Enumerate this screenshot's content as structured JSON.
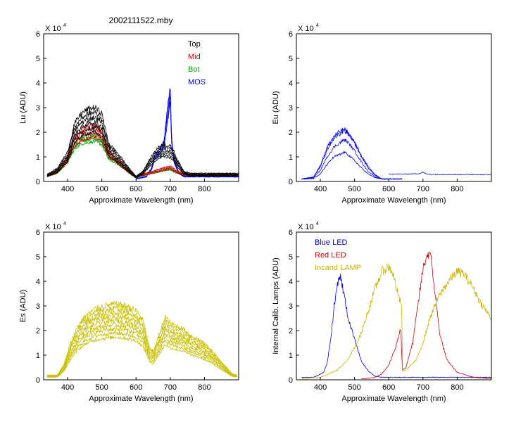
{
  "figure_title": "2002111522.mby",
  "colors": {
    "top": "#000000",
    "mid": "#cc0000",
    "bot": "#00aa00",
    "mos": "#0000ee",
    "es": "#c8c000",
    "blue_led": "#0000cc",
    "red_led": "#cc0000",
    "incand": "#c8b400",
    "axis": "#000000"
  },
  "chart_data": [
    {
      "id": "lu",
      "type": "line",
      "title": "",
      "xlabel": "Approximate Wavelength (nm)",
      "ylabel": "Lu (ADU)",
      "exponent_label": "X 10",
      "exponent_power": "4",
      "xlim": [
        330,
        900
      ],
      "ylim": [
        0,
        6
      ],
      "xticks": [
        400,
        500,
        600,
        700,
        800
      ],
      "yticks": [
        0,
        1,
        2,
        3,
        4,
        5,
        6
      ],
      "legend": [
        {
          "label": "Top",
          "color": "#000000"
        },
        {
          "label": "Mid",
          "color": "#cc0000"
        },
        {
          "label": "Bot",
          "color": "#00aa00"
        },
        {
          "label": "MOS",
          "color": "#0000ee"
        }
      ],
      "series": [
        {
          "name": "MOS",
          "color": "#0000ee",
          "copies": 4,
          "spread": 0.06,
          "x": [
            600,
            630,
            645,
            655,
            665,
            675,
            682,
            690,
            695,
            700,
            703,
            706,
            712,
            725,
            740,
            760,
            900
          ],
          "y": [
            0.1,
            0.2,
            0.5,
            1.0,
            1.1,
            1.35,
            1.5,
            2.5,
            3.0,
            3.75,
            2.0,
            1.3,
            0.8,
            0.35,
            0.2,
            0.2,
            0.2
          ]
        },
        {
          "name": "Bot",
          "color": "#00aa00",
          "copies": 3,
          "spread": 0.07,
          "x": [
            340,
            370,
            400,
            420,
            440,
            460,
            480,
            500,
            520,
            540,
            560,
            580,
            600,
            620,
            650,
            680,
            700,
            720,
            740,
            760,
            900
          ],
          "y": [
            0.2,
            0.35,
            0.8,
            1.4,
            1.65,
            1.7,
            1.75,
            1.6,
            0.95,
            0.8,
            0.6,
            0.35,
            0.15,
            0.25,
            0.35,
            0.45,
            0.5,
            0.35,
            0.28,
            0.25,
            0.25
          ]
        },
        {
          "name": "Mid",
          "color": "#cc0000",
          "copies": 4,
          "spread": 0.08,
          "x": [
            340,
            370,
            400,
            420,
            440,
            460,
            480,
            500,
            520,
            540,
            560,
            580,
            600,
            620,
            650,
            680,
            700,
            720,
            740,
            760,
            900
          ],
          "y": [
            0.22,
            0.4,
            0.9,
            1.6,
            1.9,
            2.0,
            2.05,
            1.85,
            1.1,
            0.9,
            0.65,
            0.4,
            0.17,
            0.27,
            0.38,
            0.5,
            0.57,
            0.38,
            0.29,
            0.26,
            0.26
          ]
        },
        {
          "name": "Top",
          "color": "#000000",
          "copies": 6,
          "spread": 0.08,
          "x": [
            340,
            370,
            400,
            420,
            440,
            460,
            480,
            500,
            520,
            540,
            560,
            580,
            600,
            620,
            640,
            660,
            680,
            690,
            700,
            710,
            720,
            740,
            760,
            900
          ],
          "y": [
            0.25,
            0.45,
            1.0,
            1.95,
            2.3,
            2.45,
            2.5,
            2.3,
            1.3,
            1.05,
            0.75,
            0.45,
            0.18,
            0.35,
            0.75,
            1.1,
            1.3,
            1.2,
            1.2,
            1.05,
            0.75,
            0.35,
            0.28,
            0.28
          ]
        }
      ]
    },
    {
      "id": "eu",
      "type": "line",
      "title": "",
      "xlabel": "Approximate Wavelength (nm)",
      "ylabel": "Eu (ADU)",
      "exponent_label": "X 10",
      "exponent_power": "4",
      "xlim": [
        330,
        900
      ],
      "ylim": [
        0,
        6
      ],
      "xticks": [
        400,
        500,
        600,
        700,
        800
      ],
      "yticks": [
        0,
        1,
        2,
        3,
        4,
        5,
        6
      ],
      "legend": [],
      "series": [
        {
          "name": "Eu1",
          "color": "#0000ee",
          "copies": 1,
          "spread": 0.03,
          "x": [
            345,
            380,
            400,
            420,
            440,
            460,
            470,
            480,
            500,
            520,
            540,
            560,
            580,
            600,
            640
          ],
          "y": [
            0.1,
            0.12,
            0.3,
            0.7,
            1.0,
            1.1,
            1.2,
            1.1,
            0.85,
            0.55,
            0.3,
            0.15,
            0.1,
            0.1,
            0.1
          ]
        },
        {
          "name": "Eu2",
          "color": "#0000ee",
          "copies": 1,
          "spread": 0.04,
          "x": [
            345,
            380,
            400,
            420,
            440,
            460,
            470,
            480,
            500,
            520,
            540,
            560,
            580,
            600,
            640
          ],
          "y": [
            0.1,
            0.15,
            0.45,
            1.0,
            1.4,
            1.6,
            1.7,
            1.6,
            1.25,
            0.8,
            0.4,
            0.2,
            0.1,
            0.1,
            0.1
          ]
        },
        {
          "name": "Eu3",
          "color": "#0000ee",
          "copies": 1,
          "spread": 0.04,
          "x": [
            345,
            380,
            400,
            420,
            440,
            460,
            470,
            480,
            500,
            520,
            540,
            560,
            580,
            600,
            640
          ],
          "y": [
            0.1,
            0.18,
            0.6,
            1.3,
            1.75,
            1.95,
            2.05,
            1.95,
            1.55,
            1.0,
            0.55,
            0.25,
            0.1,
            0.1,
            0.1
          ]
        },
        {
          "name": "Eu4",
          "color": "#0000ee",
          "copies": 1,
          "spread": 0.04,
          "x": [
            345,
            380,
            400,
            420,
            440,
            460,
            470,
            480,
            500,
            520,
            540,
            560,
            580,
            600,
            640
          ],
          "y": [
            0.1,
            0.18,
            0.65,
            1.4,
            1.85,
            2.05,
            2.12,
            2.0,
            1.6,
            1.05,
            0.6,
            0.28,
            0.1,
            0.1,
            0.1
          ]
        },
        {
          "name": "Eu-red",
          "color": "#0000ee",
          "copies": 1,
          "spread": 0.01,
          "x": [
            600,
            650,
            690,
            700,
            710,
            740,
            800,
            900
          ],
          "y": [
            0.3,
            0.3,
            0.32,
            0.38,
            0.3,
            0.28,
            0.28,
            0.28
          ]
        }
      ]
    },
    {
      "id": "es",
      "type": "line",
      "title": "",
      "xlabel": "Approximate Wavelength (nm)",
      "ylabel": "Es (ADU)",
      "exponent_label": "X 10",
      "exponent_power": "4",
      "xlim": [
        330,
        900
      ],
      "ylim": [
        0,
        6
      ],
      "xticks": [
        400,
        500,
        600,
        700,
        800
      ],
      "yticks": [
        0,
        1,
        2,
        3,
        4,
        5,
        6
      ],
      "legend": [],
      "series": [
        {
          "name": "Es",
          "color": "#c8c000",
          "copies": 9,
          "spread": 0.07,
          "x": [
            340,
            370,
            390,
            410,
            430,
            450,
            480,
            510,
            540,
            570,
            600,
            620,
            640,
            650,
            670,
            685,
            700,
            720,
            740,
            760,
            780,
            800,
            820,
            840,
            860,
            880,
            895
          ],
          "y": [
            0.15,
            0.15,
            0.5,
            1.2,
            1.7,
            2.0,
            2.25,
            2.35,
            2.4,
            2.35,
            2.2,
            1.9,
            1.0,
            0.9,
            1.5,
            2.0,
            1.8,
            1.7,
            1.6,
            1.4,
            1.3,
            1.15,
            0.95,
            0.7,
            0.45,
            0.2,
            0.15
          ]
        }
      ]
    },
    {
      "id": "lamps",
      "type": "line",
      "title": "",
      "xlabel": "Approximate Wavelength (nm)",
      "ylabel": "Internal Calib. Lamps (ADU)",
      "exponent_label": "X 10",
      "exponent_power": "4",
      "xlim": [
        330,
        900
      ],
      "ylim": [
        0,
        6
      ],
      "xticks": [
        400,
        500,
        600,
        700,
        800
      ],
      "yticks": [
        0,
        1,
        2,
        3,
        4,
        5,
        6
      ],
      "legend": [
        {
          "label": "Blue LED",
          "color": "#0000cc"
        },
        {
          "label": "Red LED",
          "color": "#cc0000"
        },
        {
          "label": "Incand LAMP",
          "color": "#c8b400"
        }
      ],
      "series": [
        {
          "name": "Blue LED",
          "color": "#0000cc",
          "copies": 1,
          "spread": 0.03,
          "x": [
            345,
            380,
            410,
            420,
            430,
            440,
            450,
            455,
            460,
            470,
            480,
            490,
            500,
            510,
            520,
            540,
            560,
            580,
            600,
            640,
            700,
            900
          ],
          "y": [
            0.1,
            0.1,
            0.3,
            0.7,
            1.6,
            2.9,
            3.9,
            4.2,
            4.15,
            3.4,
            2.6,
            2.1,
            1.7,
            1.2,
            0.75,
            0.35,
            0.15,
            0.1,
            0.1,
            0.1,
            0.1,
            0.1
          ]
        },
        {
          "name": "Red LED",
          "color": "#cc0000",
          "copies": 1,
          "spread": 0.03,
          "x": [
            520,
            560,
            580,
            600,
            620,
            635,
            640,
            650,
            670,
            690,
            700,
            710,
            718,
            725,
            735,
            750,
            770,
            800,
            850,
            900
          ],
          "y": [
            0.03,
            0.1,
            0.25,
            0.6,
            1.3,
            2.1,
            0.4,
            0.5,
            1.5,
            3.5,
            4.5,
            5.0,
            5.15,
            4.8,
            3.5,
            1.8,
            0.8,
            0.3,
            0.1,
            0.05
          ]
        },
        {
          "name": "Incand LAMP",
          "color": "#c8b400",
          "copies": 1,
          "spread": 0.04,
          "x": [
            345,
            400,
            450,
            480,
            500,
            520,
            540,
            560,
            580,
            600,
            610,
            620,
            630,
            638,
            640,
            650,
            680,
            700,
            720,
            740,
            760,
            780,
            800,
            820,
            840,
            870,
            900
          ],
          "y": [
            0.05,
            0.1,
            0.4,
            0.8,
            1.3,
            1.9,
            2.8,
            3.7,
            4.4,
            4.6,
            4.4,
            3.9,
            3.3,
            3.05,
            0.35,
            0.4,
            0.8,
            1.5,
            2.5,
            3.2,
            3.7,
            4.1,
            4.4,
            4.3,
            3.9,
            3.1,
            2.5
          ]
        }
      ]
    }
  ]
}
